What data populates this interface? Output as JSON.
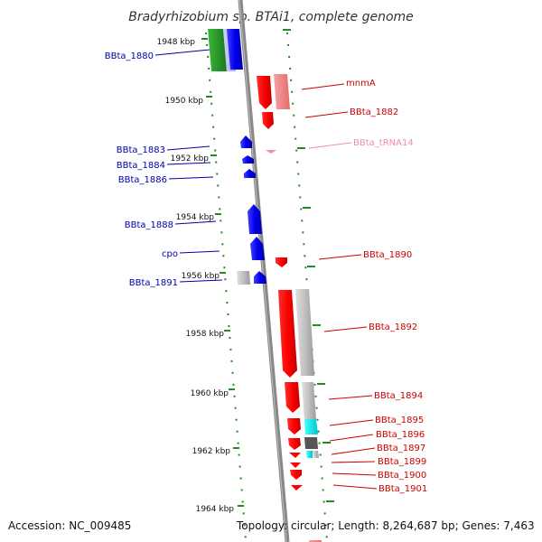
{
  "title": "Bradyrhizobium sp. BTAi1, complete genome",
  "footer": {
    "accession": "Accession: NC_009485",
    "topology": "Topology: circular; Length: 8,264,687 bp; Genes: 7,463"
  },
  "colors": {
    "forward_label": "#0000aa",
    "reverse_label": "#cc0000",
    "rna_label": "#f08cb4",
    "tick": "#1e8c1e",
    "backbone": "#888888"
  },
  "kbp_ticks": [
    "1948 kbp",
    "1950 kbp",
    "1952 kbp",
    "1954 kbp",
    "1956 kbp",
    "1958 kbp",
    "1960 kbp",
    "1962 kbp",
    "1964 kbp"
  ],
  "gene_labels": {
    "left": [
      "BBta_1880",
      "BBta_1883",
      "BBta_1884",
      "BBta_1886",
      "BBta_1888",
      "cpo",
      "BBta_1891"
    ],
    "right": [
      "mnmA",
      "BBta_1882",
      "BBta_tRNA14",
      "BBta_1890",
      "BBta_1892",
      "BBta_1894",
      "BBta_1895",
      "BBta_1896",
      "BBta_1897",
      "BBta_1899",
      "BBta_1900",
      "BBta_1901"
    ]
  }
}
